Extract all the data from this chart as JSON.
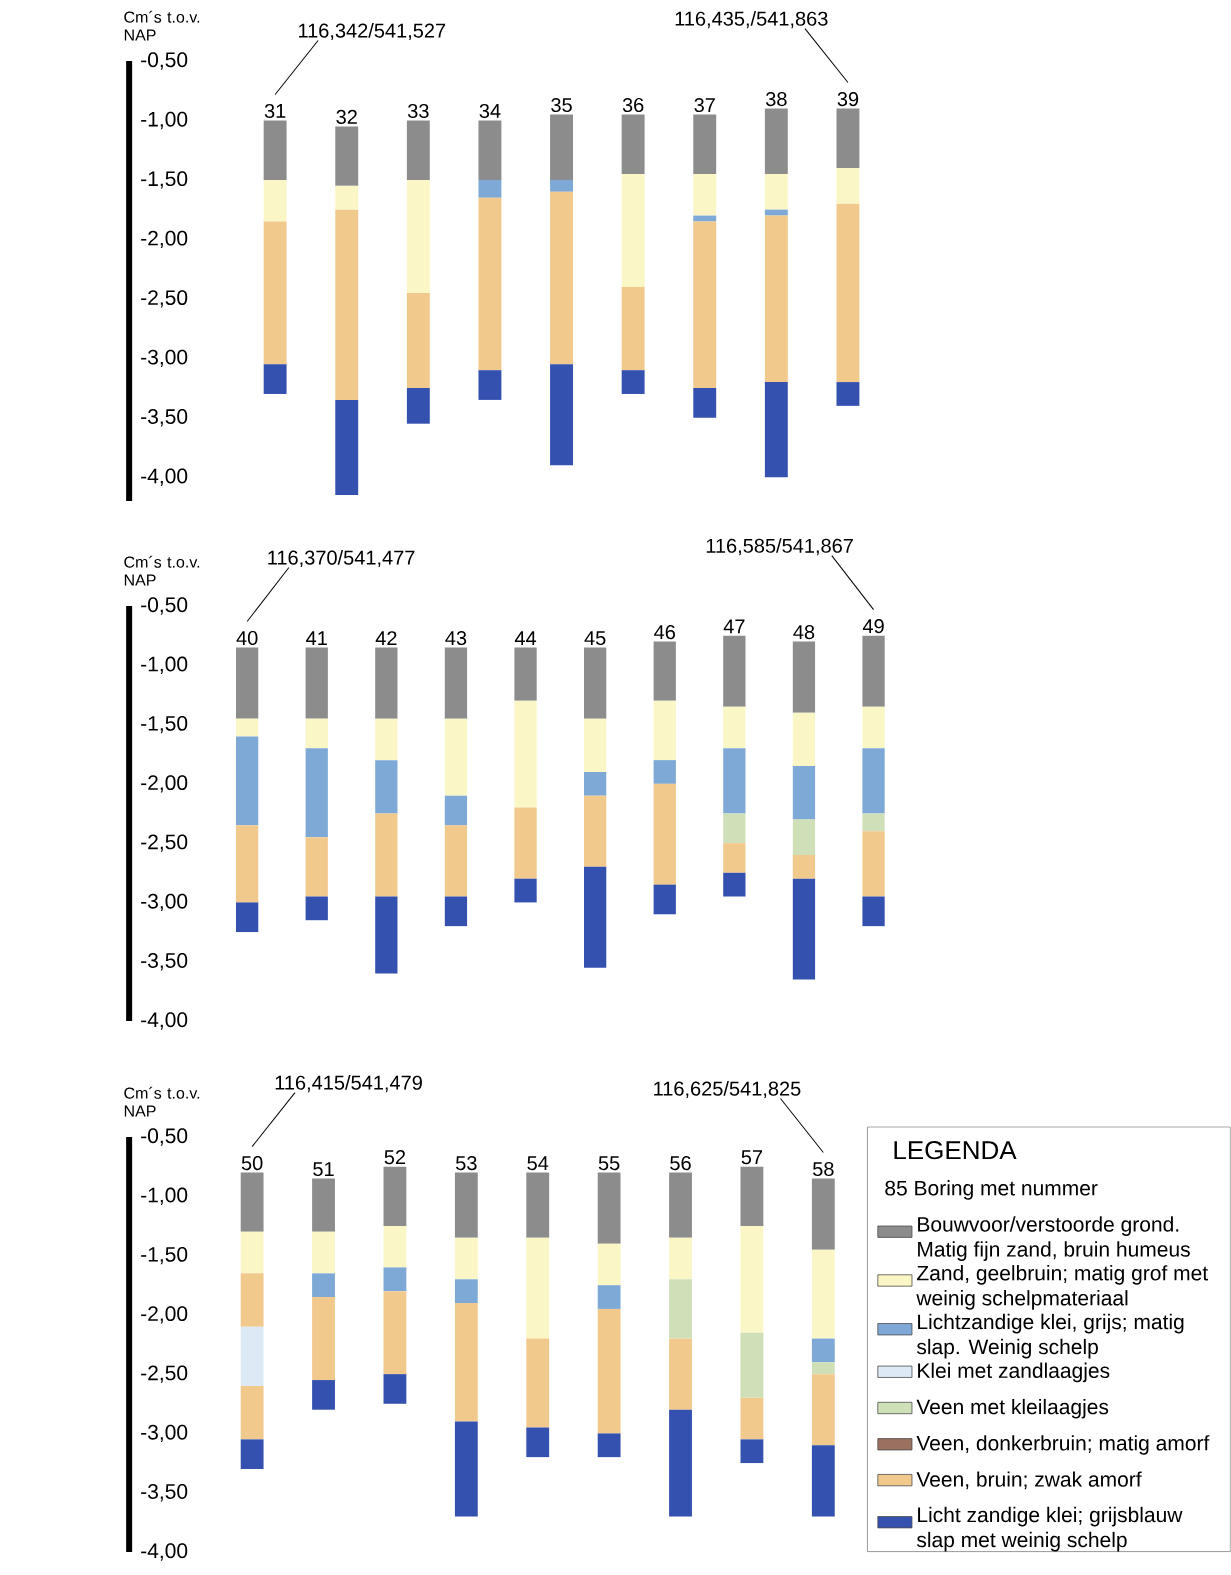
{
  "chart_data": [
    {
      "type": "bar",
      "ylabel": "Cm´s t.o.v. NAP",
      "ylim": [
        -4.2,
        -0.5
      ],
      "yticks": [
        {
          "value": -0.5,
          "label": "-0,50"
        },
        {
          "value": -1.0,
          "label": "-1,00"
        },
        {
          "value": -1.5,
          "label": "-1,50"
        },
        {
          "value": -2.0,
          "label": "-2,00"
        },
        {
          "value": -2.5,
          "label": "-2,50"
        },
        {
          "value": -3.0,
          "label": "-3,00"
        },
        {
          "value": -3.5,
          "label": "-3,50"
        },
        {
          "value": -4.0,
          "label": "-4,00"
        }
      ],
      "categories": [
        "31",
        "32",
        "33",
        "34",
        "35",
        "36",
        "37",
        "38",
        "39"
      ],
      "series": [
        {
          "color": "#8c8c8c",
          "base": [
            -1.0,
            -1.05,
            -1.0,
            -1.0,
            -0.95,
            -0.95,
            -0.95,
            -0.9,
            -0.9
          ],
          "values": [
            -0.5,
            -0.5,
            -0.5,
            -0.5,
            -0.55,
            -0.5,
            -0.5,
            -0.55,
            -0.5
          ]
        },
        {
          "color": "#fbf6c6",
          "base": [
            -1.5,
            -1.55,
            -1.5,
            null,
            null,
            -1.45,
            -1.45,
            -1.45,
            -1.4
          ],
          "values": [
            -0.35,
            -0.2,
            -0.95,
            null,
            null,
            -0.95,
            -0.35,
            -0.3,
            -0.3
          ]
        },
        {
          "color": "#7ea9d6",
          "base": [
            null,
            null,
            null,
            -1.5,
            -1.5,
            null,
            -1.8,
            -1.75,
            null
          ],
          "values": [
            null,
            null,
            null,
            -0.15,
            -0.1,
            null,
            -0.05,
            -0.05,
            null
          ]
        },
        {
          "color": "#f2c98c",
          "base": [
            -1.85,
            -1.75,
            -2.45,
            -1.65,
            -1.6,
            -2.4,
            -1.85,
            -1.8,
            -1.7
          ],
          "values": [
            -1.2,
            -1.6,
            -0.8,
            -1.45,
            -1.45,
            -0.7,
            -1.4,
            -1.4,
            -1.5
          ]
        },
        {
          "color": "#3551b0",
          "base": [
            -3.05,
            -3.35,
            -3.25,
            -3.1,
            -3.05,
            -3.1,
            -3.25,
            -3.2,
            -3.2
          ],
          "values": [
            -0.25,
            -0.8,
            -0.3,
            -0.25,
            -0.85,
            -0.2,
            -0.25,
            -0.8,
            -0.2
          ]
        }
      ],
      "annotations": [
        "116,342/541,527",
        "116,435,/541,863"
      ]
    },
    {
      "type": "bar",
      "ylabel": "Cm´s t.o.v. NAP",
      "ylim": [
        -4.0,
        -0.5
      ],
      "yticks": [
        {
          "value": -0.5,
          "label": "-0,50"
        },
        {
          "value": -1.0,
          "label": "-1,00"
        },
        {
          "value": -1.5,
          "label": "-1,50"
        },
        {
          "value": -2.0,
          "label": "-2,00"
        },
        {
          "value": -2.5,
          "label": "-2,50"
        },
        {
          "value": -3.0,
          "label": "-3,00"
        },
        {
          "value": -3.5,
          "label": "-3,50"
        },
        {
          "value": -4.0,
          "label": "-4,00"
        }
      ],
      "categories": [
        "40",
        "41",
        "42",
        "43",
        "44",
        "45",
        "46",
        "47",
        "48",
        "49"
      ],
      "series": [
        {
          "color": "#8c8c8c",
          "base": [
            -0.85,
            -0.85,
            -0.85,
            -0.85,
            -0.85,
            -0.85,
            -0.8,
            -0.75,
            -0.8,
            -0.75
          ],
          "values": [
            -0.6,
            -0.6,
            -0.6,
            -0.6,
            -0.45,
            -0.6,
            -0.5,
            -0.6,
            -0.6,
            -0.6
          ]
        },
        {
          "color": "#fbf6c6",
          "base": [
            -1.45,
            -1.45,
            -1.45,
            -1.45,
            -1.3,
            -1.45,
            -1.3,
            -1.35,
            -1.4,
            -1.35
          ],
          "values": [
            -0.15,
            -0.25,
            -0.35,
            -0.65,
            -0.9,
            -0.45,
            -0.5,
            -0.35,
            -0.45,
            -0.35
          ]
        },
        {
          "color": "#7ea9d6",
          "base": [
            -1.6,
            -1.7,
            -1.8,
            -2.1,
            null,
            -1.9,
            -1.8,
            -1.7,
            -1.85,
            -1.7
          ],
          "values": [
            -0.75,
            -0.75,
            -0.45,
            -0.25,
            null,
            -0.2,
            -0.2,
            -0.55,
            -0.45,
            -0.55
          ]
        },
        {
          "color": "#cfe0b8",
          "base": [
            null,
            null,
            null,
            null,
            null,
            null,
            null,
            -2.25,
            -2.3,
            -2.25
          ],
          "values": [
            null,
            null,
            null,
            null,
            null,
            null,
            null,
            -0.25,
            -0.3,
            -0.15
          ]
        },
        {
          "color": "#f2c98c",
          "base": [
            -2.35,
            -2.45,
            -2.25,
            -2.35,
            -2.2,
            -2.1,
            -2.0,
            -2.5,
            -2.6,
            -2.4
          ],
          "values": [
            -0.65,
            -0.5,
            -0.7,
            -0.6,
            -0.6,
            -0.6,
            -0.85,
            -0.25,
            -0.2,
            -0.55
          ]
        },
        {
          "color": "#3551b0",
          "base": [
            -3.0,
            -2.95,
            -2.95,
            -2.95,
            -2.8,
            -2.7,
            -2.85,
            -2.75,
            -2.8,
            -2.95
          ],
          "values": [
            -0.25,
            -0.2,
            -0.65,
            -0.25,
            -0.2,
            -0.85,
            -0.25,
            -0.2,
            -0.85,
            -0.25
          ]
        }
      ],
      "annotations": [
        "116,370/541,477",
        "116,585/541,867"
      ]
    },
    {
      "type": "bar",
      "ylabel": "Cm´s t.o.v. NAP",
      "ylim": [
        -4.0,
        -0.5
      ],
      "yticks": [
        {
          "value": -0.5,
          "label": "-0,50"
        },
        {
          "value": -1.0,
          "label": "-1,00"
        },
        {
          "value": -1.5,
          "label": "-1,50"
        },
        {
          "value": -2.0,
          "label": "-2,00"
        },
        {
          "value": -2.5,
          "label": "-2,50"
        },
        {
          "value": -3.0,
          "label": "-3,00"
        },
        {
          "value": -3.5,
          "label": "-3,50"
        },
        {
          "value": -4.0,
          "label": "-4,00"
        }
      ],
      "categories": [
        "50",
        "51",
        "52",
        "53",
        "54",
        "55",
        "56",
        "57",
        "58"
      ],
      "legend": "right",
      "legend_title": "LEGENDA",
      "series": [
        {
          "name": "Bouwvoor/verstoorde grond. Matig fijn zand, bruin humeus",
          "color": "#8c8c8c",
          "base": [
            -0.8,
            -0.85,
            -0.75,
            -0.8,
            -0.8,
            -0.8,
            -0.8,
            -0.75,
            -0.85
          ],
          "values": [
            -0.5,
            -0.45,
            -0.5,
            -0.55,
            -0.55,
            -0.6,
            -0.55,
            -0.5,
            -0.6
          ]
        },
        {
          "name": "Zand, geelbruin; matig grof met weinig schelpmateriaal",
          "color": "#fbf6c6",
          "base": [
            -1.3,
            -1.3,
            -1.25,
            -1.35,
            -1.35,
            -1.4,
            -1.35,
            -1.25,
            -1.45
          ],
          "values": [
            -0.35,
            -0.35,
            -0.35,
            -0.35,
            -0.85,
            -0.35,
            -0.35,
            -0.9,
            -0.75
          ]
        },
        {
          "name": "Lichtzandige klei, grijs; matig slap. Weinig schelp",
          "color": "#7ea9d6",
          "base": [
            null,
            -1.65,
            -1.6,
            -1.7,
            null,
            -1.75,
            null,
            null,
            -2.2
          ],
          "values": [
            null,
            -0.2,
            -0.2,
            -0.2,
            null,
            -0.2,
            null,
            null,
            -0.2
          ]
        },
        {
          "color": "#f2c98c",
          "base": [
            -1.65,
            null,
            null,
            null,
            null,
            null,
            null,
            null,
            null
          ],
          "values": [
            -0.45,
            null,
            null,
            null,
            null,
            null,
            null,
            null,
            null
          ]
        },
        {
          "name": "Klei met zandlaagjes",
          "color": "#dde9f5",
          "base": [
            -2.1,
            null,
            null,
            null,
            null,
            null,
            null,
            null,
            null
          ],
          "values": [
            -0.5,
            null,
            null,
            null,
            null,
            null,
            null,
            null,
            null
          ]
        },
        {
          "name": "Veen met kleilaagjes",
          "color": "#cfe0b8",
          "base": [
            null,
            null,
            null,
            null,
            null,
            null,
            -1.7,
            -2.15,
            -2.4
          ],
          "values": [
            null,
            null,
            null,
            null,
            null,
            null,
            -0.5,
            -0.55,
            -0.1
          ]
        },
        {
          "name": "Veen, donkerbruin; matig amorf",
          "color": "#9b7060",
          "values": [
            null,
            null,
            null,
            null,
            null,
            null,
            null,
            null,
            null
          ]
        },
        {
          "name": "Veen, bruin; zwak amorf",
          "color": "#f2c98c",
          "base": [
            -2.6,
            -1.85,
            -1.8,
            -1.9,
            -2.2,
            -1.95,
            -2.2,
            -2.7,
            -2.5
          ],
          "values": [
            -0.45,
            -0.7,
            -0.7,
            -1.0,
            -0.75,
            -1.05,
            -0.6,
            -0.35,
            -0.6
          ]
        },
        {
          "name": "Licht zandige klei; grijsblauw slap met weinig schelp",
          "color": "#3551b0",
          "base": [
            -3.05,
            -2.55,
            -2.5,
            -2.9,
            -2.95,
            -3.0,
            -2.8,
            -3.05,
            -3.1
          ],
          "values": [
            -0.25,
            -0.25,
            -0.25,
            -0.8,
            -0.25,
            -0.2,
            -0.9,
            -0.2,
            -0.6
          ]
        }
      ],
      "annotations": [
        "116,415/541,479",
        "116,625/541,825",
        "85 Boring met nummer"
      ]
    }
  ]
}
